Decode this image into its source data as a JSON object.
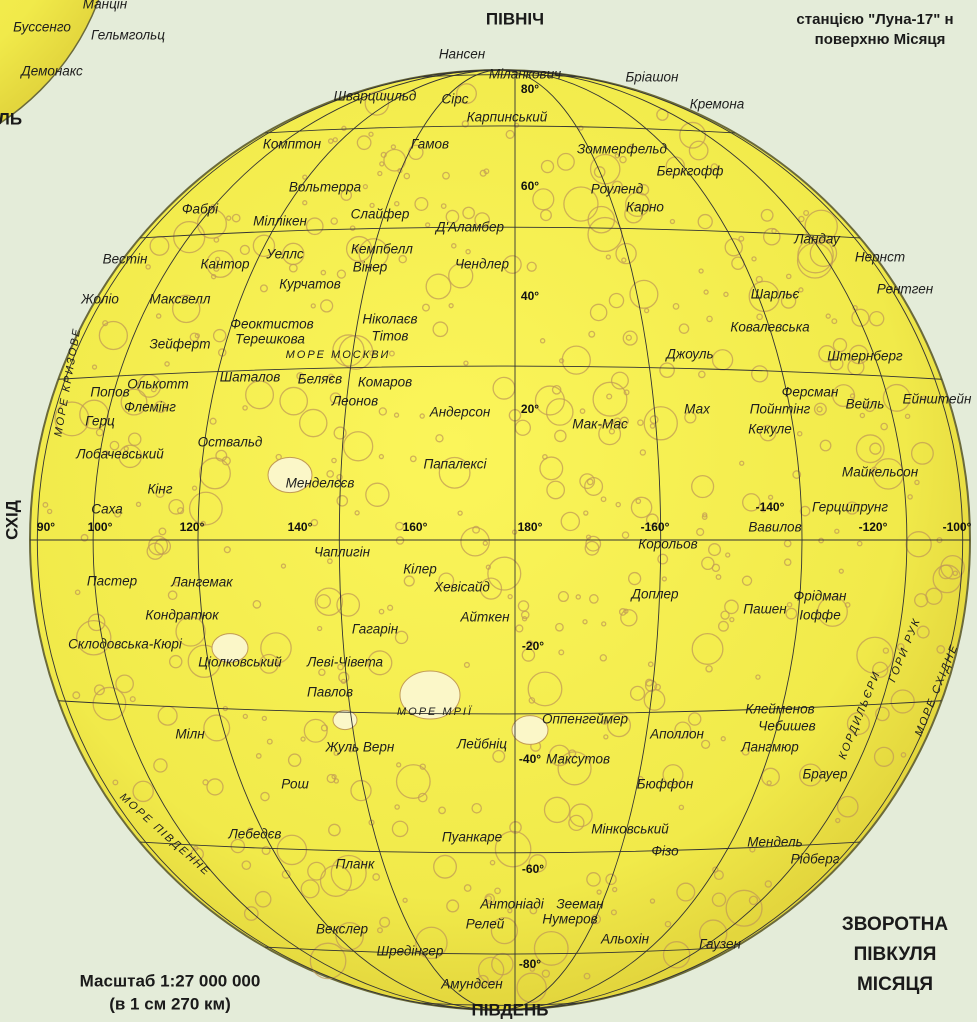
{
  "header_note": [
    "станцією \"Луна-17\" н",
    "поверхню Місяця"
  ],
  "compass": {
    "north": "ПІВНІЧ",
    "south": "ПІВДЕНЬ",
    "east": "СХІД"
  },
  "partial_label": "ЛЬ",
  "scale": {
    "ratio": "Масштаб 1:27 000 000",
    "note": "(в 1 см 270 км)"
  },
  "title": [
    "ЗВОРОТНА",
    "ПІВКУЛЯ",
    "МІСЯЦЯ"
  ],
  "latitude_labels": [
    "80°",
    "60°",
    "40°",
    "20°",
    "-20°",
    "-40°",
    "-60°",
    "-80°"
  ],
  "longitude_labels": [
    "90°",
    "100°",
    "120°",
    "140°",
    "160°",
    "180°",
    "-160°",
    "-140°",
    "-120°",
    "-100°"
  ],
  "neighbor_features": [
    "Манцін",
    "Буссенго",
    "Гельмгольц",
    "Демонакс"
  ],
  "seas": [
    "МОРЕ МОСКВИ",
    "МОРЕ МРІЇ",
    "МОРЕ КРИЗОВЕ",
    "МОРЕ ПІВДЕННЕ",
    "КОРДИЛЬЄРИ",
    "ГОРИ РУК",
    "МОРЕ СХІДНЕ"
  ],
  "features": [
    "Нансен",
    "Міланкович",
    "Бріашон",
    "Шварцшильд",
    "Сірс",
    "Кремона",
    "Карпинський",
    "Комптон",
    "Гамов",
    "Зоммерфельд",
    "Беркгофф",
    "Вольтерра",
    "Роуленд",
    "Фабрі",
    "Міллікен",
    "Слайфер",
    "Карно",
    "Д'Аламбер",
    "Ландау",
    "Вестін",
    "Кантор",
    "Уеллс",
    "Кемпбелл",
    "Вінер",
    "Чендлер",
    "Нернст",
    "Курчатов",
    "Рентген",
    "Жоліо",
    "Максвелл",
    "Шарльє",
    "Ніколаєв",
    "Феоктистов",
    "Тітов",
    "Ковалевська",
    "Терешкова",
    "Зейферт",
    "Джоуль",
    "Штернберг",
    "Шаталов",
    "Беляєв",
    "Комаров",
    "Олькотт",
    "Попов",
    "Ферсман",
    "Леонов",
    "Флемінг",
    "Пойнтінг",
    "Вейль",
    "Ейнштейн",
    "Герц",
    "Андерсон",
    "Мак-Мас",
    "Мах",
    "Кекуле",
    "Оствальд",
    "Лобачевський",
    "Папалексі",
    "Майкельсон",
    "Кінг",
    "Менделєєв",
    "Герцшпрунг",
    "Саха",
    "Вавилов",
    "Чаплигін",
    "Корольов",
    "Кілер",
    "Пастер",
    "Лангемак",
    "Хевісайд",
    "Доплер",
    "Фрідман",
    "Кондратюк",
    "Пашен",
    "Іоффе",
    "Айткен",
    "Склодовська-Кюрі",
    "Гагарін",
    "Ціолковський",
    "Леві-Чівета",
    "Павлов",
    "Оппенгеймер",
    "Клейменов",
    "Чебишев",
    "Мілн",
    "Аполлон",
    "Лейбніц",
    "Жуль Верн",
    "Лангмюр",
    "Максутов",
    "Брауер",
    "Рош",
    "Бюффон",
    "Лебедєв",
    "Мінковський",
    "Пуанкаре",
    "Мендель",
    "Фізо",
    "Планк",
    "Рідберг",
    "Антоніаді",
    "Зееман",
    "Релей",
    "Нумеров",
    "Альохін",
    "Векслер",
    "Шредінгер",
    "Гаузен",
    "Амундсен"
  ]
}
